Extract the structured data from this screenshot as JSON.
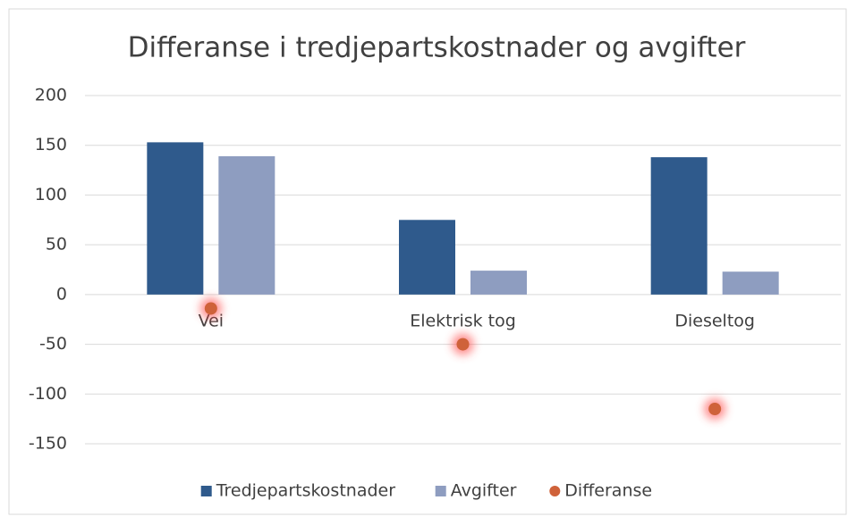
{
  "chart_data": {
    "type": "bar",
    "title": "Differanse i tredjepartskostnader og avgifter",
    "categories": [
      "Vei",
      "Elektrisk tog",
      "Dieseltog"
    ],
    "series": [
      {
        "name": "Tredjepartskostnader",
        "color": "#2f5a8c",
        "type": "bar",
        "values": [
          153,
          75,
          138
        ]
      },
      {
        "name": "Avgifter",
        "color": "#8e9dc0",
        "type": "bar",
        "values": [
          139,
          24,
          23
        ]
      },
      {
        "name": "Differanse",
        "color": "#cf623a",
        "type": "scatter",
        "values": [
          -14,
          -50,
          -115
        ]
      }
    ],
    "ylim": [
      -150,
      200
    ],
    "yticks": [
      -150,
      -100,
      -50,
      0,
      50,
      100,
      150,
      200
    ],
    "grid": true,
    "legend": "bottom"
  }
}
